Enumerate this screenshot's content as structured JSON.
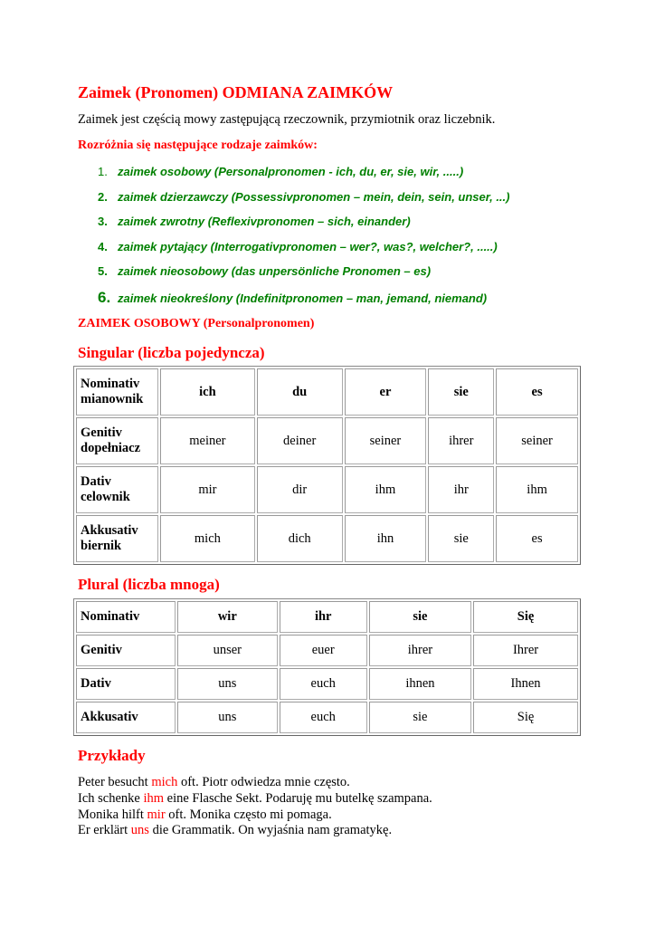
{
  "title": "Zaimek (Pronomen) ODMIANA ZAIMKÓW",
  "intro": "Zaimek jest częścią mowy zastępującą rzeczownik, przymiotnik oraz liczebnik.",
  "subheading": "Rozróżnia się następujące rodzaje zaimków:",
  "list": [
    {
      "num": "1.",
      "text": "zaimek osobowy (Personalpronomen - ich, du, er, sie, wir, .....)"
    },
    {
      "num": "2.",
      "text": "zaimek dzierzawczy (Possessivpronomen – mein, dein, sein, unser, ...)"
    },
    {
      "num": "3.",
      "text": "zaimek zwrotny (Reflexivpronomen – sich, einander)"
    },
    {
      "num": "4.",
      "text": "zaimek pytający (Interrogativpronomen – wer?, was?, welcher?, .....)"
    },
    {
      "num": "5.",
      "text": "zaimek nieosobowy (das unpersönliche Pronomen – es)"
    },
    {
      "num": "6.",
      "text": "zaimek nieokreślony (Indefinitpronomen – man, jemand, niemand)"
    }
  ],
  "section_caps": "ZAIMEK OSOBOWY",
  "section_paren": "(Personalpronomen)",
  "singular": {
    "heading": "Singular (liczba pojedyncza)",
    "rows": [
      {
        "case": "Nominativ",
        "case_pl": "mianownik",
        "cells": [
          "ich",
          "du",
          "er",
          "sie",
          "es"
        ]
      },
      {
        "case": "Genitiv",
        "case_pl": "dopełniacz",
        "cells": [
          "meiner",
          "deiner",
          "seiner",
          "ihrer",
          "seiner"
        ]
      },
      {
        "case": "Dativ",
        "case_pl": "celownik",
        "cells": [
          "mir",
          "dir",
          "ihm",
          "ihr",
          "ihm"
        ]
      },
      {
        "case": "Akkusativ",
        "case_pl": "biernik",
        "cells": [
          "mich",
          "dich",
          "ihn",
          "sie",
          "es"
        ]
      }
    ]
  },
  "plural": {
    "heading": "Plural (liczba mnoga)",
    "rows": [
      {
        "case": "Nominativ",
        "cells": [
          "wir",
          "ihr",
          "sie",
          "Się"
        ]
      },
      {
        "case": "Genitiv",
        "cells": [
          "unser",
          "euer",
          "ihrer",
          "Ihrer"
        ]
      },
      {
        "case": "Dativ",
        "cells": [
          "uns",
          "euch",
          "ihnen",
          "Ihnen"
        ]
      },
      {
        "case": "Akkusativ",
        "cells": [
          "uns",
          "euch",
          "sie",
          "Się"
        ]
      }
    ]
  },
  "examples": {
    "heading": "Przykłady",
    "sentences": [
      {
        "before": "Peter besucht ",
        "highlight": "mich",
        "after": " oft. Piotr odwiedza mnie często."
      },
      {
        "before": "Ich schenke ",
        "highlight": "ihm",
        "after": " eine Flasche Sekt. Podaruję mu butelkę szampana."
      },
      {
        "before": "Monika hilft ",
        "highlight": "mir",
        "after": " oft. Monika często mi pomaga."
      },
      {
        "before": "Er erklärt ",
        "highlight": "uns",
        "after": " die Grammatik. On wyjaśnia nam gramatykę."
      }
    ]
  },
  "colors": {
    "heading": "#ff0000",
    "list": "#008000",
    "text": "#000000"
  }
}
